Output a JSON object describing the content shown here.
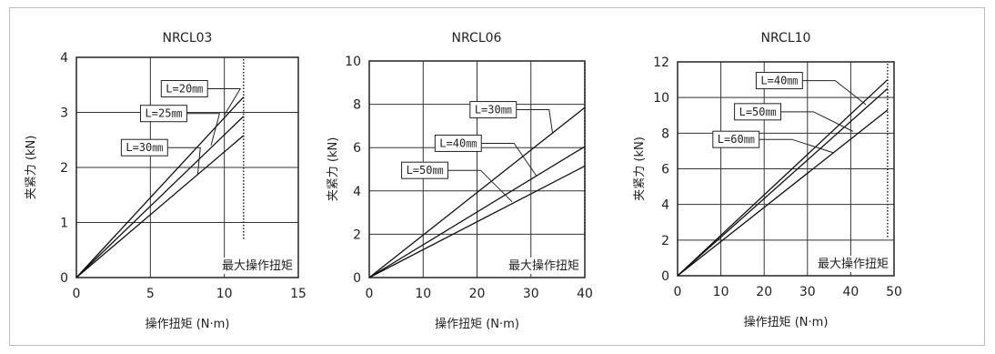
{
  "chart_data": [
    {
      "type": "line",
      "title": "NRCL03",
      "xlabel": "操作扭矩 (N·m)",
      "ylabel": "夹紧力 (kN)",
      "xlim": [
        0,
        15
      ],
      "ylim": [
        0,
        4
      ],
      "xticks": [
        0,
        5,
        10,
        15
      ],
      "yticks": [
        0,
        1,
        2,
        3,
        4
      ],
      "grid": true,
      "max_torque": 11.3,
      "max_torque_label": "最大操作扭矩",
      "series": [
        {
          "name": "L=20㎜",
          "x": [
            0,
            11.3
          ],
          "y": [
            0,
            3.28
          ],
          "label_x": 7.3,
          "label_y": 3.43,
          "leader_end": [
            10.0,
            2.95
          ]
        },
        {
          "name": "L=25㎜",
          "x": [
            0,
            11.3
          ],
          "y": [
            0,
            2.93
          ],
          "label_x": 5.9,
          "label_y": 2.98,
          "leader_end": [
            9.1,
            2.4
          ]
        },
        {
          "name": "L=30㎜",
          "x": [
            0,
            11.3
          ],
          "y": [
            0,
            2.58
          ],
          "label_x": 4.6,
          "label_y": 2.36,
          "leader_end": [
            8.2,
            1.88
          ]
        }
      ]
    },
    {
      "type": "line",
      "title": "NRCL06",
      "xlabel": "操作扭矩 (N·m)",
      "ylabel": "夹紧力 (kN)",
      "xlim": [
        0,
        40
      ],
      "ylim": [
        0,
        10
      ],
      "xticks": [
        0,
        10,
        20,
        30,
        40
      ],
      "yticks": [
        0,
        2,
        4,
        6,
        8,
        10
      ],
      "grid": true,
      "max_torque": 40,
      "max_torque_label": "最大操作扭矩",
      "series": [
        {
          "name": "L=30㎜",
          "x": [
            0,
            40
          ],
          "y": [
            0,
            7.85
          ],
          "label_x": 23,
          "label_y": 7.75,
          "leader_end": [
            34,
            6.7
          ]
        },
        {
          "name": "L=40㎜",
          "x": [
            0,
            40
          ],
          "y": [
            0,
            6.05
          ],
          "label_x": 16.5,
          "label_y": 6.2,
          "leader_end": [
            31,
            4.7
          ]
        },
        {
          "name": "L=50㎜",
          "x": [
            0,
            40
          ],
          "y": [
            0,
            5.15
          ],
          "label_x": 10.3,
          "label_y": 4.95,
          "leader_end": [
            26.5,
            3.5
          ]
        }
      ]
    },
    {
      "type": "line",
      "title": "NRCL10",
      "xlabel": "操作扭矩 (N·m)",
      "ylabel": "夹紧力 (kN)",
      "xlim": [
        0,
        50
      ],
      "ylim": [
        0,
        12
      ],
      "xticks": [
        0,
        10,
        20,
        30,
        40,
        50
      ],
      "yticks": [
        0,
        2,
        4,
        6,
        8,
        10,
        12
      ],
      "grid": true,
      "max_torque": 48.5,
      "max_torque_label": "最大操作扭矩",
      "series": [
        {
          "name": "L=40㎜",
          "x": [
            0,
            48.5
          ],
          "y": [
            0,
            11.0
          ],
          "label_x": 23.5,
          "label_y": 10.95,
          "leader_end": [
            43.5,
            9.6
          ]
        },
        {
          "name": "L=50㎜",
          "x": [
            0,
            48.5
          ],
          "y": [
            0,
            10.5
          ],
          "label_x": 18.5,
          "label_y": 9.2,
          "leader_end": [
            40.5,
            8.1
          ]
        },
        {
          "name": "L=60㎜",
          "x": [
            0,
            48.5
          ],
          "y": [
            0,
            9.3
          ],
          "label_x": 13.5,
          "label_y": 7.65,
          "leader_end": [
            36.0,
            6.9
          ]
        }
      ]
    }
  ]
}
